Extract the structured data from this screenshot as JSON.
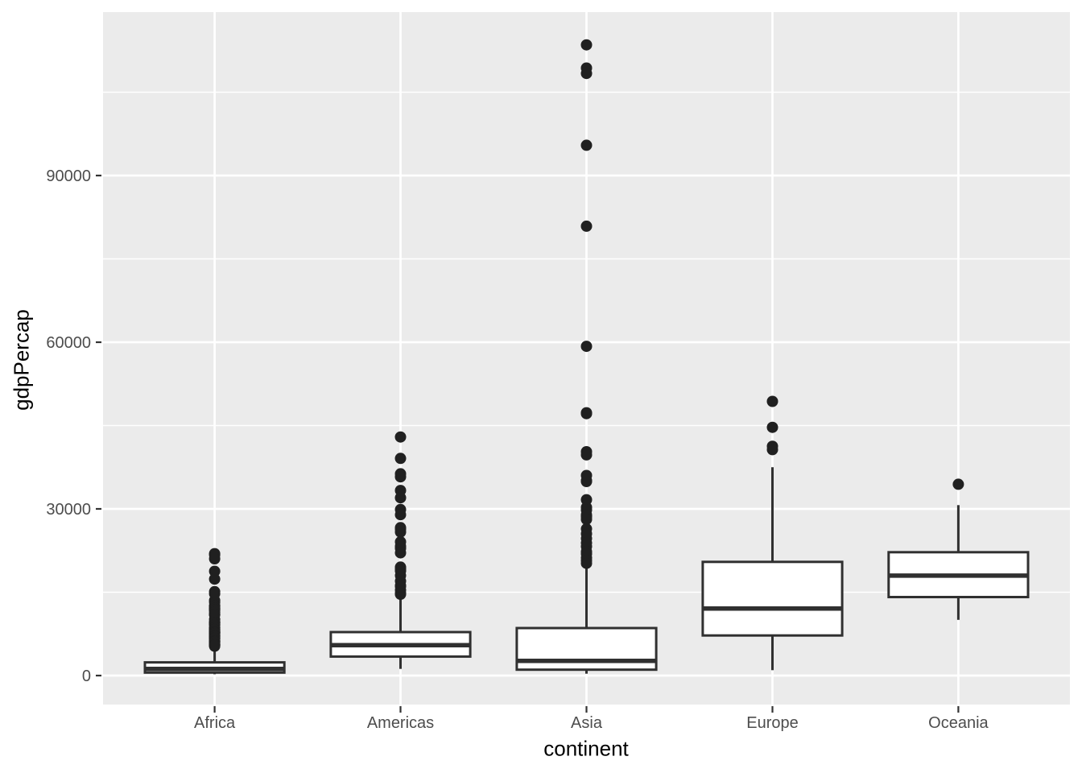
{
  "figure": {
    "background": "#FFFFFF",
    "panel_background": "#EBEBEB",
    "gridline_color": "#FFFFFF",
    "box_fill": "#FFFFFF",
    "box_stroke": "#303030",
    "outlier_color": "#202020",
    "tick_color": "#333333",
    "axis_text_color": "#4D4D4D",
    "axis_title_color": "#000000"
  },
  "chart_data": {
    "type": "boxplot",
    "title": "",
    "xlabel": "continent",
    "ylabel": "gdpPercap",
    "categories": [
      "Africa",
      "Americas",
      "Asia",
      "Europe",
      "Oceania"
    ],
    "y_ticks": [
      0,
      30000,
      60000,
      90000
    ],
    "y_minor_ticks": [
      15000,
      45000,
      75000,
      105000
    ],
    "ylim": [
      -5213,
      119425
    ],
    "grid": "on",
    "legend": "none",
    "series": [
      {
        "name": "Africa",
        "whisker_low": 241,
        "q1": 535,
        "median": 1192,
        "q3": 2377,
        "whisker_high": 4959,
        "outliers": [
          21951,
          21746,
          21012,
          18773,
          17364,
          15113,
          14723,
          13522,
          13206,
          12570,
          12522,
          12154,
          12058,
          11864,
          11771,
          11402,
          11004,
          10957,
          10122,
          9640,
          9535,
          9467,
          9270,
          9121,
          8647,
          8568,
          8359,
          8244,
          8029,
          7954,
          7826,
          7766,
          7710,
          7703,
          7670,
          7479,
          7225,
          7114,
          7093,
          6811,
          6757,
          6632,
          6316,
          6223,
          6101,
          6072,
          5769,
          5581,
          5523,
          5487,
          5473,
          5288
        ]
      },
      {
        "name": "Americas",
        "whisker_low": 1202,
        "q1": 3428,
        "median": 5466,
        "q3": 7830,
        "whisker_high": 13990,
        "outliers": [
          42952,
          39097,
          36319,
          35767,
          33329,
          32003,
          29885,
          28955,
          26627,
          26343,
          25825,
          24073,
          23269,
          22899,
          22090,
          19531,
          19329,
          18971,
          18856,
          18009,
          16999,
          16173,
          16077,
          15390,
          14847,
          14641
        ]
      },
      {
        "name": "Asia",
        "whisker_low": 331,
        "q1": 1057,
        "median": 2647,
        "q3": 8549,
        "whisker_high": 19784,
        "outliers": [
          113523,
          109347,
          108382,
          95458,
          80894,
          59265,
          47306,
          47143,
          40301,
          39725,
          36023,
          35110,
          34933,
          31656,
          30281,
          29796,
          28926,
          28605,
          28118,
          26407,
          25523,
          24675,
          23880,
          23235,
          22316,
          21905,
          21209,
          20717,
          20207
        ]
      },
      {
        "name": "Europe",
        "whisker_low": 974,
        "q1": 7213,
        "median": 12082,
        "q3": 20461,
        "whisker_high": 37506,
        "outliers": [
          49357,
          44684,
          41283,
          40676
        ]
      },
      {
        "name": "Oceania",
        "whisker_low": 10040,
        "q1": 14142,
        "median": 17983,
        "q3": 22214,
        "whisker_high": 30688,
        "outliers": [
          34435
        ]
      }
    ]
  }
}
